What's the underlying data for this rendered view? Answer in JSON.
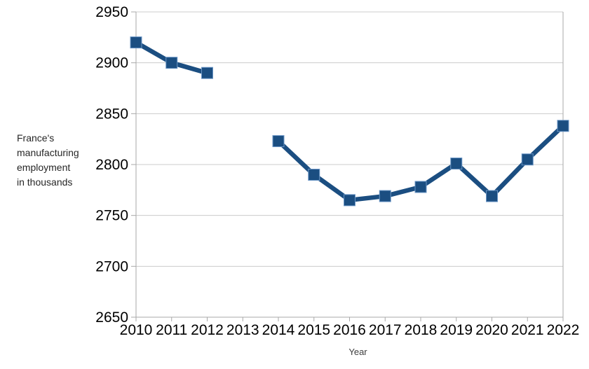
{
  "chart_data": {
    "type": "line",
    "title": "",
    "xlabel": "Year",
    "ylabel_lines": [
      "France's",
      "manufacturing",
      "employment",
      "in thousands"
    ],
    "x": [
      2010,
      2011,
      2012,
      2013,
      2014,
      2015,
      2016,
      2017,
      2018,
      2019,
      2020,
      2021,
      2022
    ],
    "xticklabels": [
      "2010",
      "2011",
      "2012",
      "2013",
      "2014",
      "2015",
      "2016",
      "2017",
      "2018",
      "2019",
      "2020",
      "2021",
      "2022"
    ],
    "series": [
      {
        "name": "France's manufacturing employment in thousands",
        "values": [
          2920,
          2900,
          2890,
          null,
          2823,
          2790,
          2765,
          2769,
          2778,
          2801,
          2769,
          2805,
          2838
        ],
        "marker": "square"
      }
    ],
    "ylim": [
      2650,
      2950
    ],
    "ytick_step": 50,
    "yticklabels": [
      "2650",
      "2700",
      "2750",
      "2800",
      "2850",
      "2900",
      "2950"
    ],
    "grid": true,
    "legend": false
  },
  "colors": {
    "series": "#1b4e81",
    "marker_edge": "#6b96c6",
    "grid": "#cccccc",
    "axis": "#a8a8a8",
    "tick_label": "#000000",
    "axis_title": "#262626",
    "x_title": "#3d3d3d",
    "background": "#ffffff"
  }
}
